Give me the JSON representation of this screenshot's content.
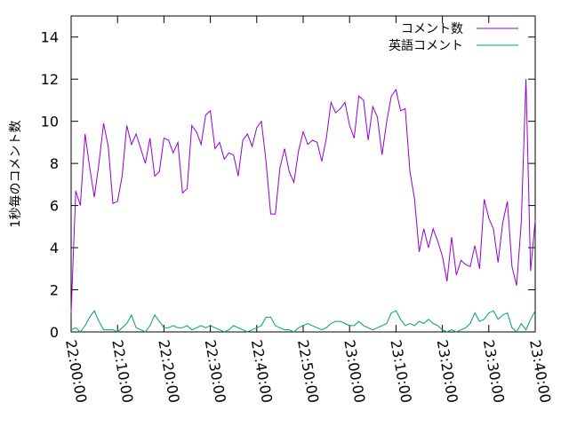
{
  "chart_data": {
    "type": "line",
    "ylabel": "1秒毎のコメント数",
    "ylim": [
      0,
      15
    ],
    "yticks": [
      0,
      2,
      4,
      6,
      8,
      10,
      12,
      14
    ],
    "xlim": [
      "22:00:00",
      "23:40:00"
    ],
    "xticks": [
      "22:00:00",
      "22:10:00",
      "22:20:00",
      "22:30:00",
      "22:40:00",
      "22:50:00",
      "23:00:00",
      "23:10:00",
      "23:20:00",
      "23:30:00",
      "23:40:00"
    ],
    "legend_position": "top-right",
    "grid": false,
    "series": [
      {
        "name": "コメント数",
        "color": "#9400d3",
        "x": [
          "22:00:00",
          "22:01:00",
          "22:02:00",
          "22:03:00",
          "22:04:00",
          "22:05:00",
          "22:06:00",
          "22:07:00",
          "22:08:00",
          "22:09:00",
          "22:10:00",
          "22:11:00",
          "22:12:00",
          "22:13:00",
          "22:14:00",
          "22:15:00",
          "22:16:00",
          "22:17:00",
          "22:18:00",
          "22:19:00",
          "22:20:00",
          "22:21:00",
          "22:22:00",
          "22:23:00",
          "22:24:00",
          "22:25:00",
          "22:26:00",
          "22:27:00",
          "22:28:00",
          "22:29:00",
          "22:30:00",
          "22:31:00",
          "22:32:00",
          "22:33:00",
          "22:34:00",
          "22:35:00",
          "22:36:00",
          "22:37:00",
          "22:38:00",
          "22:39:00",
          "22:40:00",
          "22:41:00",
          "22:42:00",
          "22:43:00",
          "22:44:00",
          "22:45:00",
          "22:46:00",
          "22:47:00",
          "22:48:00",
          "22:49:00",
          "22:50:00",
          "22:51:00",
          "22:52:00",
          "22:53:00",
          "22:54:00",
          "22:55:00",
          "22:56:00",
          "22:57:00",
          "22:58:00",
          "22:59:00",
          "23:00:00",
          "23:01:00",
          "23:02:00",
          "23:03:00",
          "23:04:00",
          "23:05:00",
          "23:06:00",
          "23:07:00",
          "23:08:00",
          "23:09:00",
          "23:10:00",
          "23:11:00",
          "23:12:00",
          "23:13:00",
          "23:14:00",
          "23:15:00",
          "23:16:00",
          "23:17:00",
          "23:18:00",
          "23:19:00",
          "23:20:00",
          "23:21:00",
          "23:22:00",
          "23:23:00",
          "23:24:00",
          "23:25:00",
          "23:26:00",
          "23:27:00",
          "23:28:00",
          "23:29:00",
          "23:30:00",
          "23:31:00",
          "23:32:00",
          "23:33:00",
          "23:34:00",
          "23:35:00",
          "23:36:00",
          "23:37:00",
          "23:38:00",
          "23:39:00",
          "23:40:00"
        ],
        "values": [
          0.9,
          6.7,
          6.0,
          9.4,
          7.8,
          6.4,
          8.0,
          9.9,
          8.8,
          6.1,
          6.2,
          7.4,
          9.8,
          8.9,
          9.4,
          8.7,
          8.0,
          9.2,
          7.4,
          7.6,
          9.2,
          9.1,
          8.5,
          9.0,
          6.6,
          6.8,
          9.8,
          9.5,
          8.9,
          10.3,
          10.5,
          8.7,
          9.0,
          8.2,
          8.5,
          8.4,
          7.4,
          9.1,
          9.4,
          8.8,
          9.7,
          10.0,
          8.1,
          5.6,
          5.6,
          7.8,
          8.7,
          7.6,
          7.1,
          8.6,
          9.5,
          8.9,
          9.1,
          9.0,
          8.1,
          9.2,
          10.9,
          10.4,
          10.6,
          10.9,
          9.8,
          9.2,
          11.2,
          11.0,
          9.1,
          10.7,
          10.2,
          8.4,
          10.0,
          11.2,
          11.5,
          10.5,
          10.6,
          7.6,
          6.3,
          3.8,
          4.9,
          4.0,
          4.9,
          4.3,
          3.6,
          2.4,
          4.5,
          2.7,
          3.4,
          3.2,
          3.1,
          4.1,
          3.0,
          6.3,
          5.4,
          4.9,
          3.3,
          5.2,
          6.2,
          3.1,
          2.2,
          5.2,
          12.0,
          2.9,
          5.3
        ]
      },
      {
        "name": "英語コメント",
        "color": "#009e73",
        "x": [
          "22:00:00",
          "22:01:00",
          "22:02:00",
          "22:03:00",
          "22:04:00",
          "22:05:00",
          "22:06:00",
          "22:07:00",
          "22:08:00",
          "22:09:00",
          "22:10:00",
          "22:11:00",
          "22:12:00",
          "22:13:00",
          "22:14:00",
          "22:15:00",
          "22:16:00",
          "22:17:00",
          "22:18:00",
          "22:19:00",
          "22:20:00",
          "22:21:00",
          "22:22:00",
          "22:23:00",
          "22:24:00",
          "22:25:00",
          "22:26:00",
          "22:27:00",
          "22:28:00",
          "22:29:00",
          "22:30:00",
          "22:31:00",
          "22:32:00",
          "22:33:00",
          "22:34:00",
          "22:35:00",
          "22:36:00",
          "22:37:00",
          "22:38:00",
          "22:39:00",
          "22:40:00",
          "22:41:00",
          "22:42:00",
          "22:43:00",
          "22:44:00",
          "22:45:00",
          "22:46:00",
          "22:47:00",
          "22:48:00",
          "22:49:00",
          "22:50:00",
          "22:51:00",
          "22:52:00",
          "22:53:00",
          "22:54:00",
          "22:55:00",
          "22:56:00",
          "22:57:00",
          "22:58:00",
          "22:59:00",
          "23:00:00",
          "23:01:00",
          "23:02:00",
          "23:03:00",
          "23:04:00",
          "23:05:00",
          "23:06:00",
          "23:07:00",
          "23:08:00",
          "23:09:00",
          "23:10:00",
          "23:11:00",
          "23:12:00",
          "23:13:00",
          "23:14:00",
          "23:15:00",
          "23:16:00",
          "23:17:00",
          "23:18:00",
          "23:19:00",
          "23:20:00",
          "23:21:00",
          "23:22:00",
          "23:23:00",
          "23:24:00",
          "23:25:00",
          "23:26:00",
          "23:27:00",
          "23:28:00",
          "23:29:00",
          "23:30:00",
          "23:31:00",
          "23:32:00",
          "23:33:00",
          "23:34:00",
          "23:35:00",
          "23:36:00",
          "23:37:00",
          "23:38:00",
          "23:39:00",
          "23:40:00"
        ],
        "values": [
          0.1,
          0.2,
          0.0,
          0.3,
          0.7,
          1.0,
          0.5,
          0.1,
          0.1,
          0.1,
          0.0,
          0.2,
          0.4,
          0.8,
          0.2,
          0.1,
          0.0,
          0.3,
          0.8,
          0.5,
          0.2,
          0.2,
          0.3,
          0.2,
          0.2,
          0.3,
          0.1,
          0.2,
          0.3,
          0.2,
          0.3,
          0.2,
          0.1,
          0.0,
          0.1,
          0.3,
          0.2,
          0.1,
          0.0,
          0.1,
          0.2,
          0.3,
          0.7,
          0.7,
          0.3,
          0.2,
          0.1,
          0.1,
          0.0,
          0.2,
          0.3,
          0.4,
          0.3,
          0.2,
          0.1,
          0.2,
          0.4,
          0.5,
          0.5,
          0.4,
          0.3,
          0.3,
          0.5,
          0.3,
          0.2,
          0.1,
          0.2,
          0.3,
          0.4,
          0.9,
          1.0,
          0.6,
          0.3,
          0.4,
          0.3,
          0.5,
          0.4,
          0.6,
          0.4,
          0.3,
          0.1,
          0.0,
          0.1,
          0.0,
          0.1,
          0.2,
          0.4,
          0.9,
          0.5,
          0.6,
          0.9,
          1.0,
          0.6,
          0.8,
          0.9,
          0.2,
          0.0,
          0.4,
          0.1,
          0.6,
          1.0
        ]
      }
    ]
  }
}
